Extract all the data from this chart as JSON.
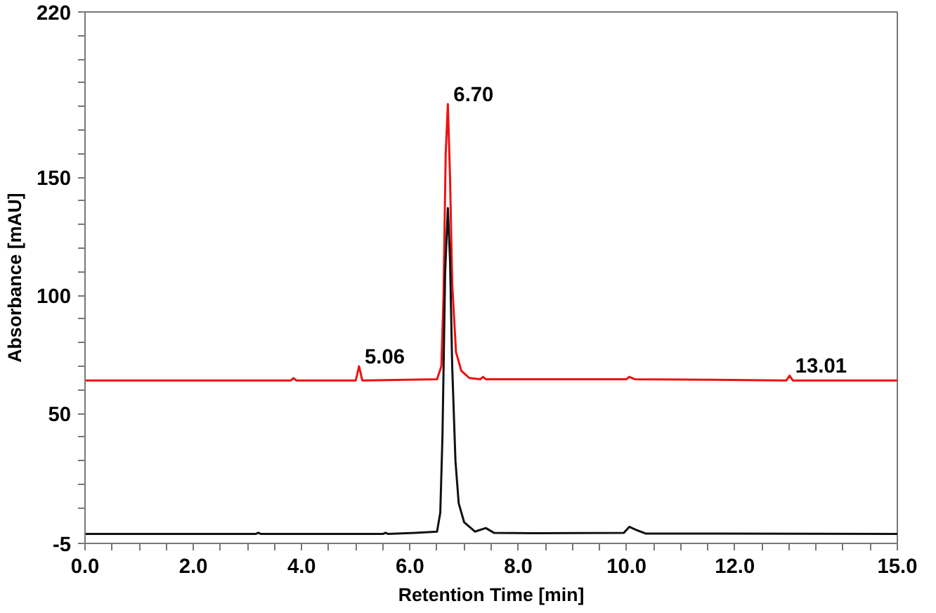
{
  "chart_data": {
    "type": "line",
    "xlabel": "Retention Time [min]",
    "ylabel": "Absorbance [mAU]",
    "xlim": [
      0,
      15
    ],
    "ylim": [
      -5,
      220
    ],
    "xticks": [
      {
        "value": 0,
        "label": "0.0"
      },
      {
        "value": 0.5,
        "label": null
      },
      {
        "value": 1,
        "label": null
      },
      {
        "value": 1.5,
        "label": null
      },
      {
        "value": 2,
        "label": "2.0"
      },
      {
        "value": 2.5,
        "label": null
      },
      {
        "value": 3,
        "label": null
      },
      {
        "value": 3.5,
        "label": null
      },
      {
        "value": 4,
        "label": "4.0"
      },
      {
        "value": 4.5,
        "label": null
      },
      {
        "value": 5,
        "label": null
      },
      {
        "value": 5.5,
        "label": null
      },
      {
        "value": 6,
        "label": "6.0"
      },
      {
        "value": 6.5,
        "label": null
      },
      {
        "value": 7,
        "label": null
      },
      {
        "value": 7.5,
        "label": null
      },
      {
        "value": 8,
        "label": "8.0"
      },
      {
        "value": 8.5,
        "label": null
      },
      {
        "value": 9,
        "label": null
      },
      {
        "value": 9.5,
        "label": null
      },
      {
        "value": 10,
        "label": "10.0"
      },
      {
        "value": 10.5,
        "label": null
      },
      {
        "value": 11,
        "label": null
      },
      {
        "value": 11.5,
        "label": null
      },
      {
        "value": 12,
        "label": "12.0"
      },
      {
        "value": 12.5,
        "label": null
      },
      {
        "value": 13,
        "label": null
      },
      {
        "value": 13.5,
        "label": null
      },
      {
        "value": 14,
        "label": null
      },
      {
        "value": 14.5,
        "label": null
      },
      {
        "value": 15,
        "label": "15.0"
      }
    ],
    "yticks": [
      -5,
      {
        "value": 10,
        "label": null
      },
      {
        "value": 20,
        "label": null
      },
      {
        "value": 30,
        "label": null
      },
      {
        "value": 40,
        "label": null
      },
      50,
      {
        "value": 60,
        "label": null
      },
      {
        "value": 70,
        "label": null
      },
      {
        "value": 80,
        "label": null
      },
      {
        "value": 90,
        "label": null
      },
      100,
      {
        "value": 110,
        "label": null
      },
      {
        "value": 120,
        "label": null
      },
      {
        "value": 130,
        "label": null
      },
      {
        "value": 140,
        "label": null
      },
      150,
      {
        "value": 160,
        "label": null
      },
      {
        "value": 170,
        "label": null
      },
      {
        "value": 180,
        "label": null
      },
      {
        "value": 190,
        "label": null
      },
      {
        "value": 200,
        "label": null
      },
      {
        "value": 210,
        "label": null
      },
      220
    ],
    "grid": false,
    "marker": "none",
    "line_style": "solid",
    "series": [
      {
        "color": "#ee1111",
        "x": [
          0,
          3.8,
          3.85,
          3.9,
          5.0,
          5.06,
          5.12,
          6.5,
          6.58,
          6.62,
          6.66,
          6.7,
          6.74,
          6.78,
          6.85,
          6.95,
          7.1,
          7.3,
          7.35,
          7.4,
          10.0,
          10.05,
          10.15,
          12.95,
          13.01,
          13.07,
          15
        ],
        "values": [
          64,
          64,
          65,
          64,
          64,
          70,
          64,
          64.5,
          70,
          100,
          160,
          181,
          150,
          105,
          76,
          68,
          65,
          64.5,
          65.5,
          64.5,
          64.5,
          65.5,
          64.5,
          64,
          66,
          64,
          64
        ]
      },
      {
        "color": "#111111",
        "x": [
          0,
          3.15,
          3.2,
          3.25,
          5.5,
          5.55,
          5.6,
          6.1,
          6.5,
          6.56,
          6.6,
          6.65,
          6.7,
          6.74,
          6.78,
          6.84,
          6.9,
          7.0,
          7.2,
          7.4,
          7.55,
          8.3,
          9.95,
          10.05,
          10.2,
          10.35,
          15
        ],
        "values": [
          -1,
          -1,
          -0.5,
          -1,
          -1,
          -0.5,
          -1,
          -0.5,
          0,
          8,
          40,
          110,
          137,
          115,
          70,
          30,
          12,
          4,
          0,
          1.5,
          -0.5,
          -0.7,
          -0.5,
          2,
          0.5,
          -0.8,
          -1
        ]
      }
    ],
    "annotations": [
      {
        "text": "6.70",
        "x": 6.7,
        "y": 181
      },
      {
        "text": "5.06",
        "x": 5.06,
        "y": 70
      },
      {
        "text": "13.01",
        "x": 13.01,
        "y": 66
      }
    ]
  }
}
